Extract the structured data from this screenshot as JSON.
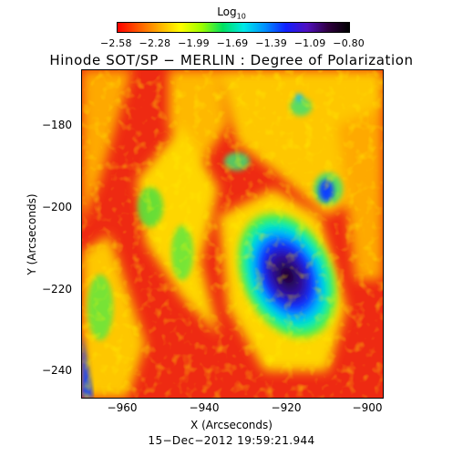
{
  "colorbar": {
    "label_base": "Log",
    "label_sub": "10",
    "ticks": [
      "−2.58",
      "−2.28",
      "−1.99",
      "−1.69",
      "−1.39",
      "−1.09",
      "−0.80"
    ]
  },
  "title": "Hinode SOT/SP − MERLIN : Degree of Polarization",
  "axes": {
    "x_label": "X (Arcseconds)",
    "y_label": "Y (Arcseconds)",
    "x_ticks": [
      "−960",
      "−940",
      "−920",
      "−900"
    ],
    "y_ticks": [
      "−180",
      "−200",
      "−220",
      "−240"
    ]
  },
  "timestamp": "15−Dec−2012 19:59:21.944"
}
